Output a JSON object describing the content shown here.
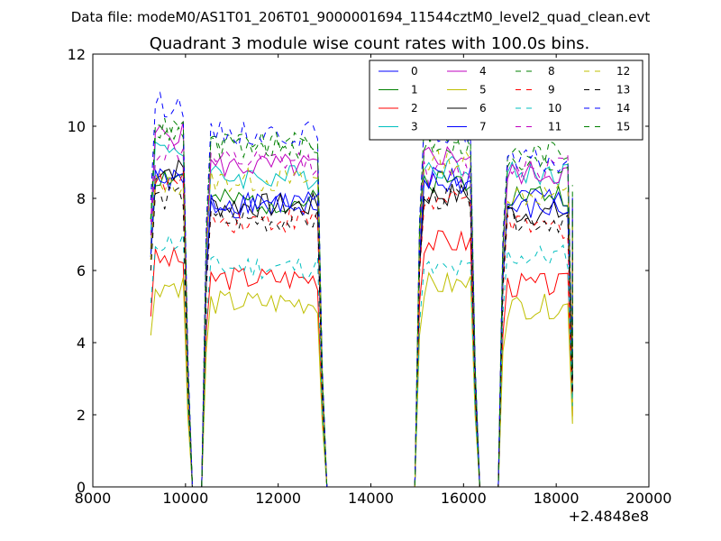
{
  "suptitle": "Data file: modeM0/AS1T01_206T01_9000001694_11544cztM0_level2_quad_clean.evt",
  "chart_data": {
    "type": "line",
    "title": "Quadrant 3 module wise count rates with 100.0s bins.",
    "xlabel": "",
    "ylabel": "",
    "x_offset_label": "+2.4848e8",
    "xlim": [
      8000,
      20000
    ],
    "ylim": [
      0,
      12
    ],
    "xticks": [
      8000,
      10000,
      12000,
      14000,
      16000,
      18000,
      20000
    ],
    "yticks": [
      0,
      2,
      4,
      6,
      8,
      10,
      12
    ],
    "grid": false,
    "legend_position": "top-right",
    "legend_columns": 4,
    "x_segments": [
      {
        "start": 9250,
        "end": 10050,
        "step": 100
      },
      {
        "start": 10450,
        "end": 12950,
        "step": 100
      },
      {
        "start": 15050,
        "end": 16250,
        "step": 100
      },
      {
        "start": 16850,
        "end": 18350,
        "step": 100
      }
    ],
    "series": [
      {
        "name": "0",
        "color": "#0000ff",
        "dash": "solid",
        "levels": [
          8.5,
          7.8,
          8.6,
          8.0
        ]
      },
      {
        "name": "1",
        "color": "#008000",
        "dash": "solid",
        "levels": [
          8.6,
          7.9,
          8.5,
          8.1
        ]
      },
      {
        "name": "2",
        "color": "#ff0000",
        "dash": "solid",
        "levels": [
          6.3,
          5.8,
          6.8,
          5.6
        ]
      },
      {
        "name": "3",
        "color": "#00bfbf",
        "dash": "solid",
        "levels": [
          9.4,
          8.6,
          8.9,
          8.7
        ]
      },
      {
        "name": "4",
        "color": "#bf00bf",
        "dash": "solid",
        "levels": [
          9.8,
          8.9,
          9.2,
          8.7
        ]
      },
      {
        "name": "5",
        "color": "#bfbf00",
        "dash": "solid",
        "levels": [
          5.6,
          5.1,
          5.6,
          5.0
        ]
      },
      {
        "name": "6",
        "color": "#000000",
        "dash": "solid",
        "levels": [
          8.8,
          7.8,
          8.1,
          7.6
        ]
      },
      {
        "name": "7",
        "color": "#0000ff",
        "dash": "solid",
        "levels": [
          8.5,
          7.9,
          8.4,
          7.7
        ]
      },
      {
        "name": "8",
        "color": "#008000",
        "dash": "dashed",
        "levels": [
          9.9,
          9.5,
          9.7,
          9.3
        ]
      },
      {
        "name": "9",
        "color": "#ff0000",
        "dash": "dashed",
        "levels": [
          8.4,
          7.4,
          7.9,
          7.2
        ]
      },
      {
        "name": "10",
        "color": "#00bfbf",
        "dash": "dashed",
        "levels": [
          6.8,
          6.1,
          6.0,
          6.4
        ]
      },
      {
        "name": "11",
        "color": "#bf00bf",
        "dash": "dashed",
        "levels": [
          9.3,
          9.0,
          8.7,
          8.9
        ]
      },
      {
        "name": "12",
        "color": "#bfbf00",
        "dash": "dashed",
        "levels": [
          8.4,
          8.5,
          9.0,
          8.1
        ]
      },
      {
        "name": "13",
        "color": "#000000",
        "dash": "dashed",
        "levels": [
          8.0,
          7.4,
          8.0,
          7.4
        ]
      },
      {
        "name": "14",
        "color": "#0000ff",
        "dash": "dashed",
        "levels": [
          10.6,
          9.8,
          9.8,
          9.0
        ]
      },
      {
        "name": "15",
        "color": "#008000",
        "dash": "dashed",
        "levels": [
          9.9,
          9.4,
          9.5,
          8.9
        ]
      }
    ]
  }
}
